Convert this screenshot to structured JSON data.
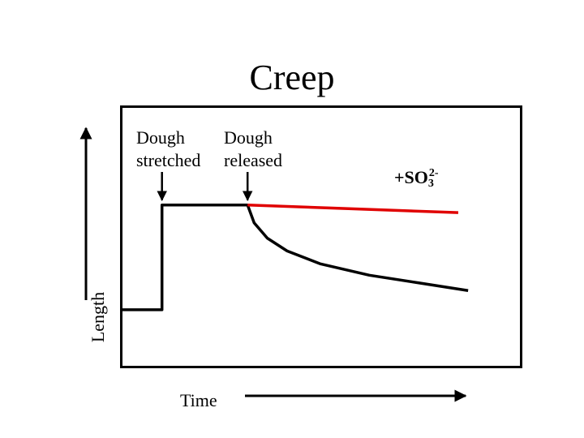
{
  "chart_data": {
    "type": "line",
    "title": "Creep",
    "xlabel": "Time",
    "ylabel": "Length",
    "annotations": [
      {
        "id": "stretched",
        "line1": "Dough",
        "line2": "stretched",
        "x": 1.2
      },
      {
        "id": "released",
        "line1": "Dough",
        "line2": "released",
        "x": 3.8
      }
    ],
    "xlim": [
      0,
      12
    ],
    "ylim": [
      0,
      10
    ],
    "series": [
      {
        "id": "control",
        "color": "#000000",
        "points": [
          [
            0,
            2.1
          ],
          [
            1.2,
            2.1
          ],
          [
            1.2,
            6.2
          ],
          [
            3.8,
            6.2
          ],
          [
            4.0,
            5.5
          ],
          [
            4.4,
            4.9
          ],
          [
            5.0,
            4.4
          ],
          [
            6.0,
            3.9
          ],
          [
            7.5,
            3.45
          ],
          [
            9.0,
            3.15
          ],
          [
            10.5,
            2.85
          ]
        ]
      },
      {
        "id": "sulfite",
        "name_main": "+SO",
        "name_sub": "3",
        "name_sup": "2-",
        "color": "#e00000",
        "points": [
          [
            3.8,
            6.2
          ],
          [
            10.2,
            5.9
          ]
        ]
      }
    ],
    "axis_arrows": true,
    "grid": false
  }
}
